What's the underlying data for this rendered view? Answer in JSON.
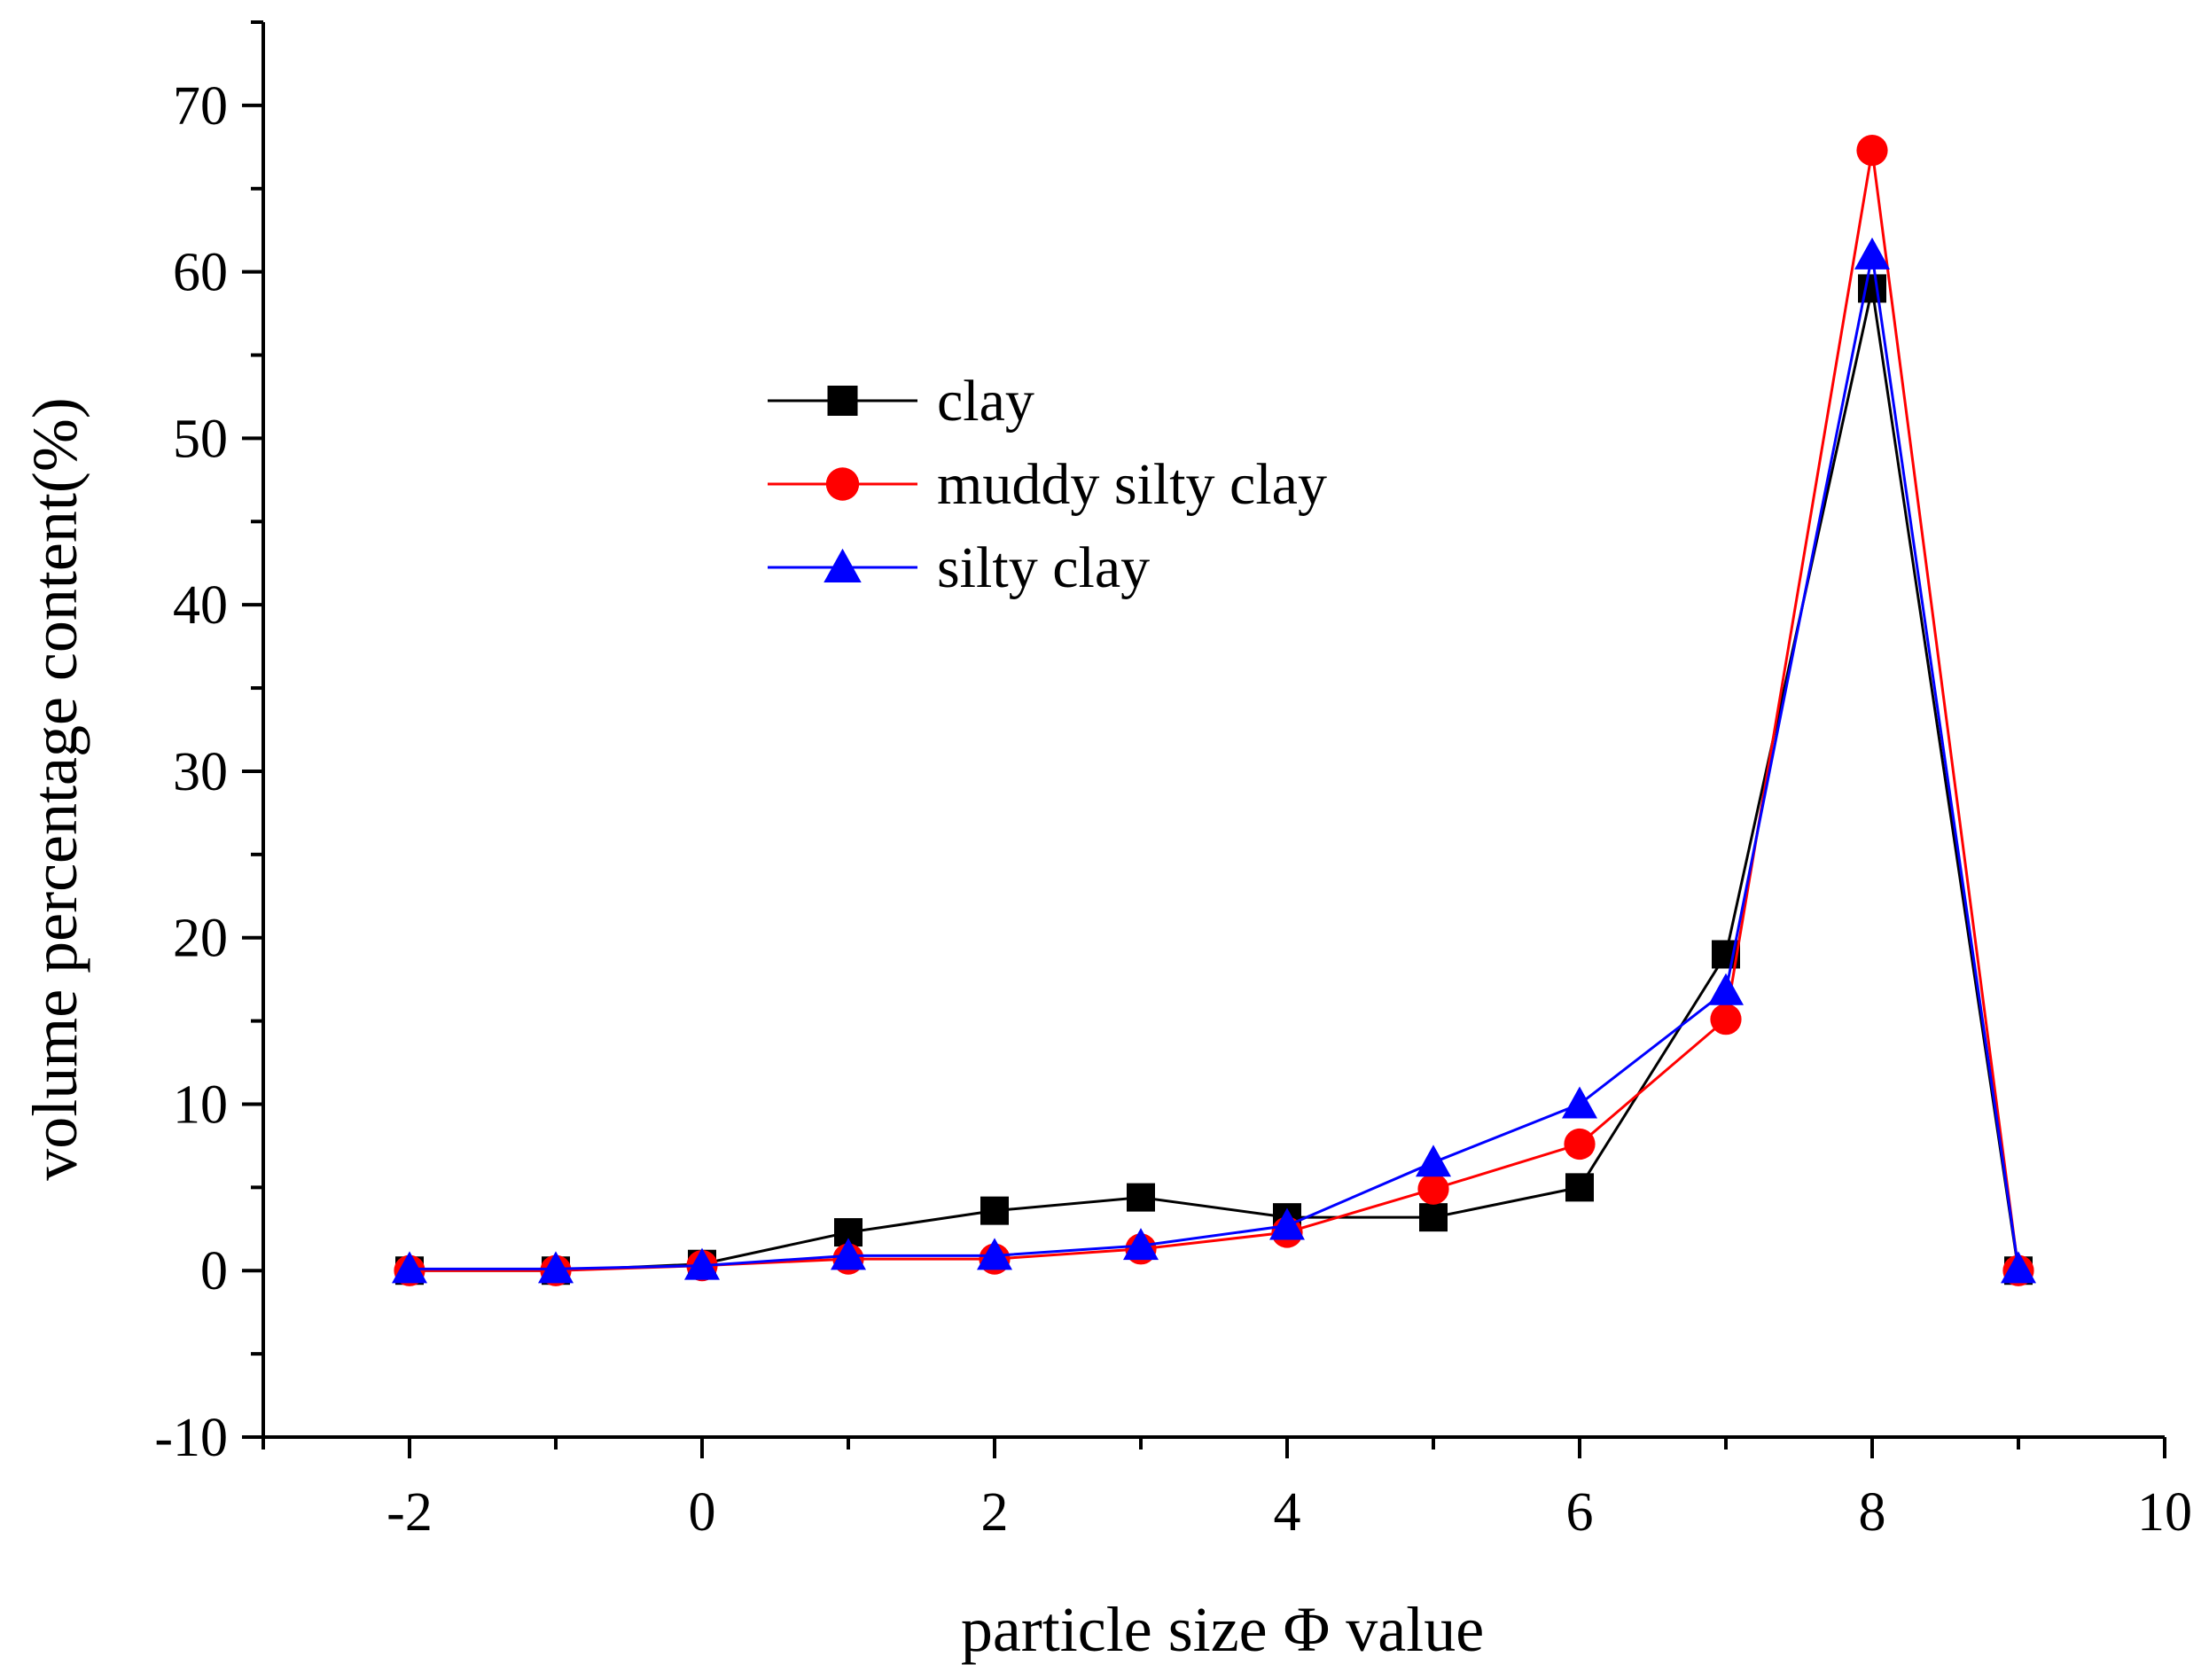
{
  "chart_data": {
    "type": "line",
    "title": "",
    "xlabel": "particle size Φ value",
    "ylabel": "volume percentage content(%)",
    "xlim": [
      -3,
      10
    ],
    "ylim": [
      -10,
      75
    ],
    "xticks": [
      -2,
      0,
      2,
      4,
      6,
      8,
      10
    ],
    "yticks": [
      -10,
      0,
      10,
      20,
      30,
      40,
      50,
      60,
      70
    ],
    "xtick_labels": [
      "-2",
      "0",
      "2",
      "4",
      "6",
      "8",
      "10"
    ],
    "ytick_labels": [
      "-10",
      "0",
      "10",
      "20",
      "30",
      "40",
      "50",
      "60",
      "70"
    ],
    "x": [
      -2,
      -1,
      0,
      1,
      2,
      3,
      4,
      5,
      6,
      7,
      8,
      9
    ],
    "series": [
      {
        "name": "clay",
        "color": "#000000",
        "marker": "square",
        "values": [
          0.0,
          0.0,
          0.4,
          2.3,
          3.6,
          4.4,
          3.2,
          3.2,
          5.0,
          19.0,
          59.0,
          0.0
        ]
      },
      {
        "name": "muddy silty clay",
        "color": "#ff0000",
        "marker": "circle",
        "values": [
          0.0,
          0.0,
          0.3,
          0.7,
          0.7,
          1.3,
          2.3,
          4.9,
          7.6,
          15.1,
          67.3,
          0.0
        ]
      },
      {
        "name": "silty clay",
        "color": "#0000ff",
        "marker": "triangle",
        "values": [
          0.1,
          0.1,
          0.3,
          0.9,
          0.9,
          1.5,
          2.7,
          6.5,
          10.0,
          16.8,
          61.0,
          0.1
        ]
      }
    ],
    "legend_position": "upper-left"
  }
}
